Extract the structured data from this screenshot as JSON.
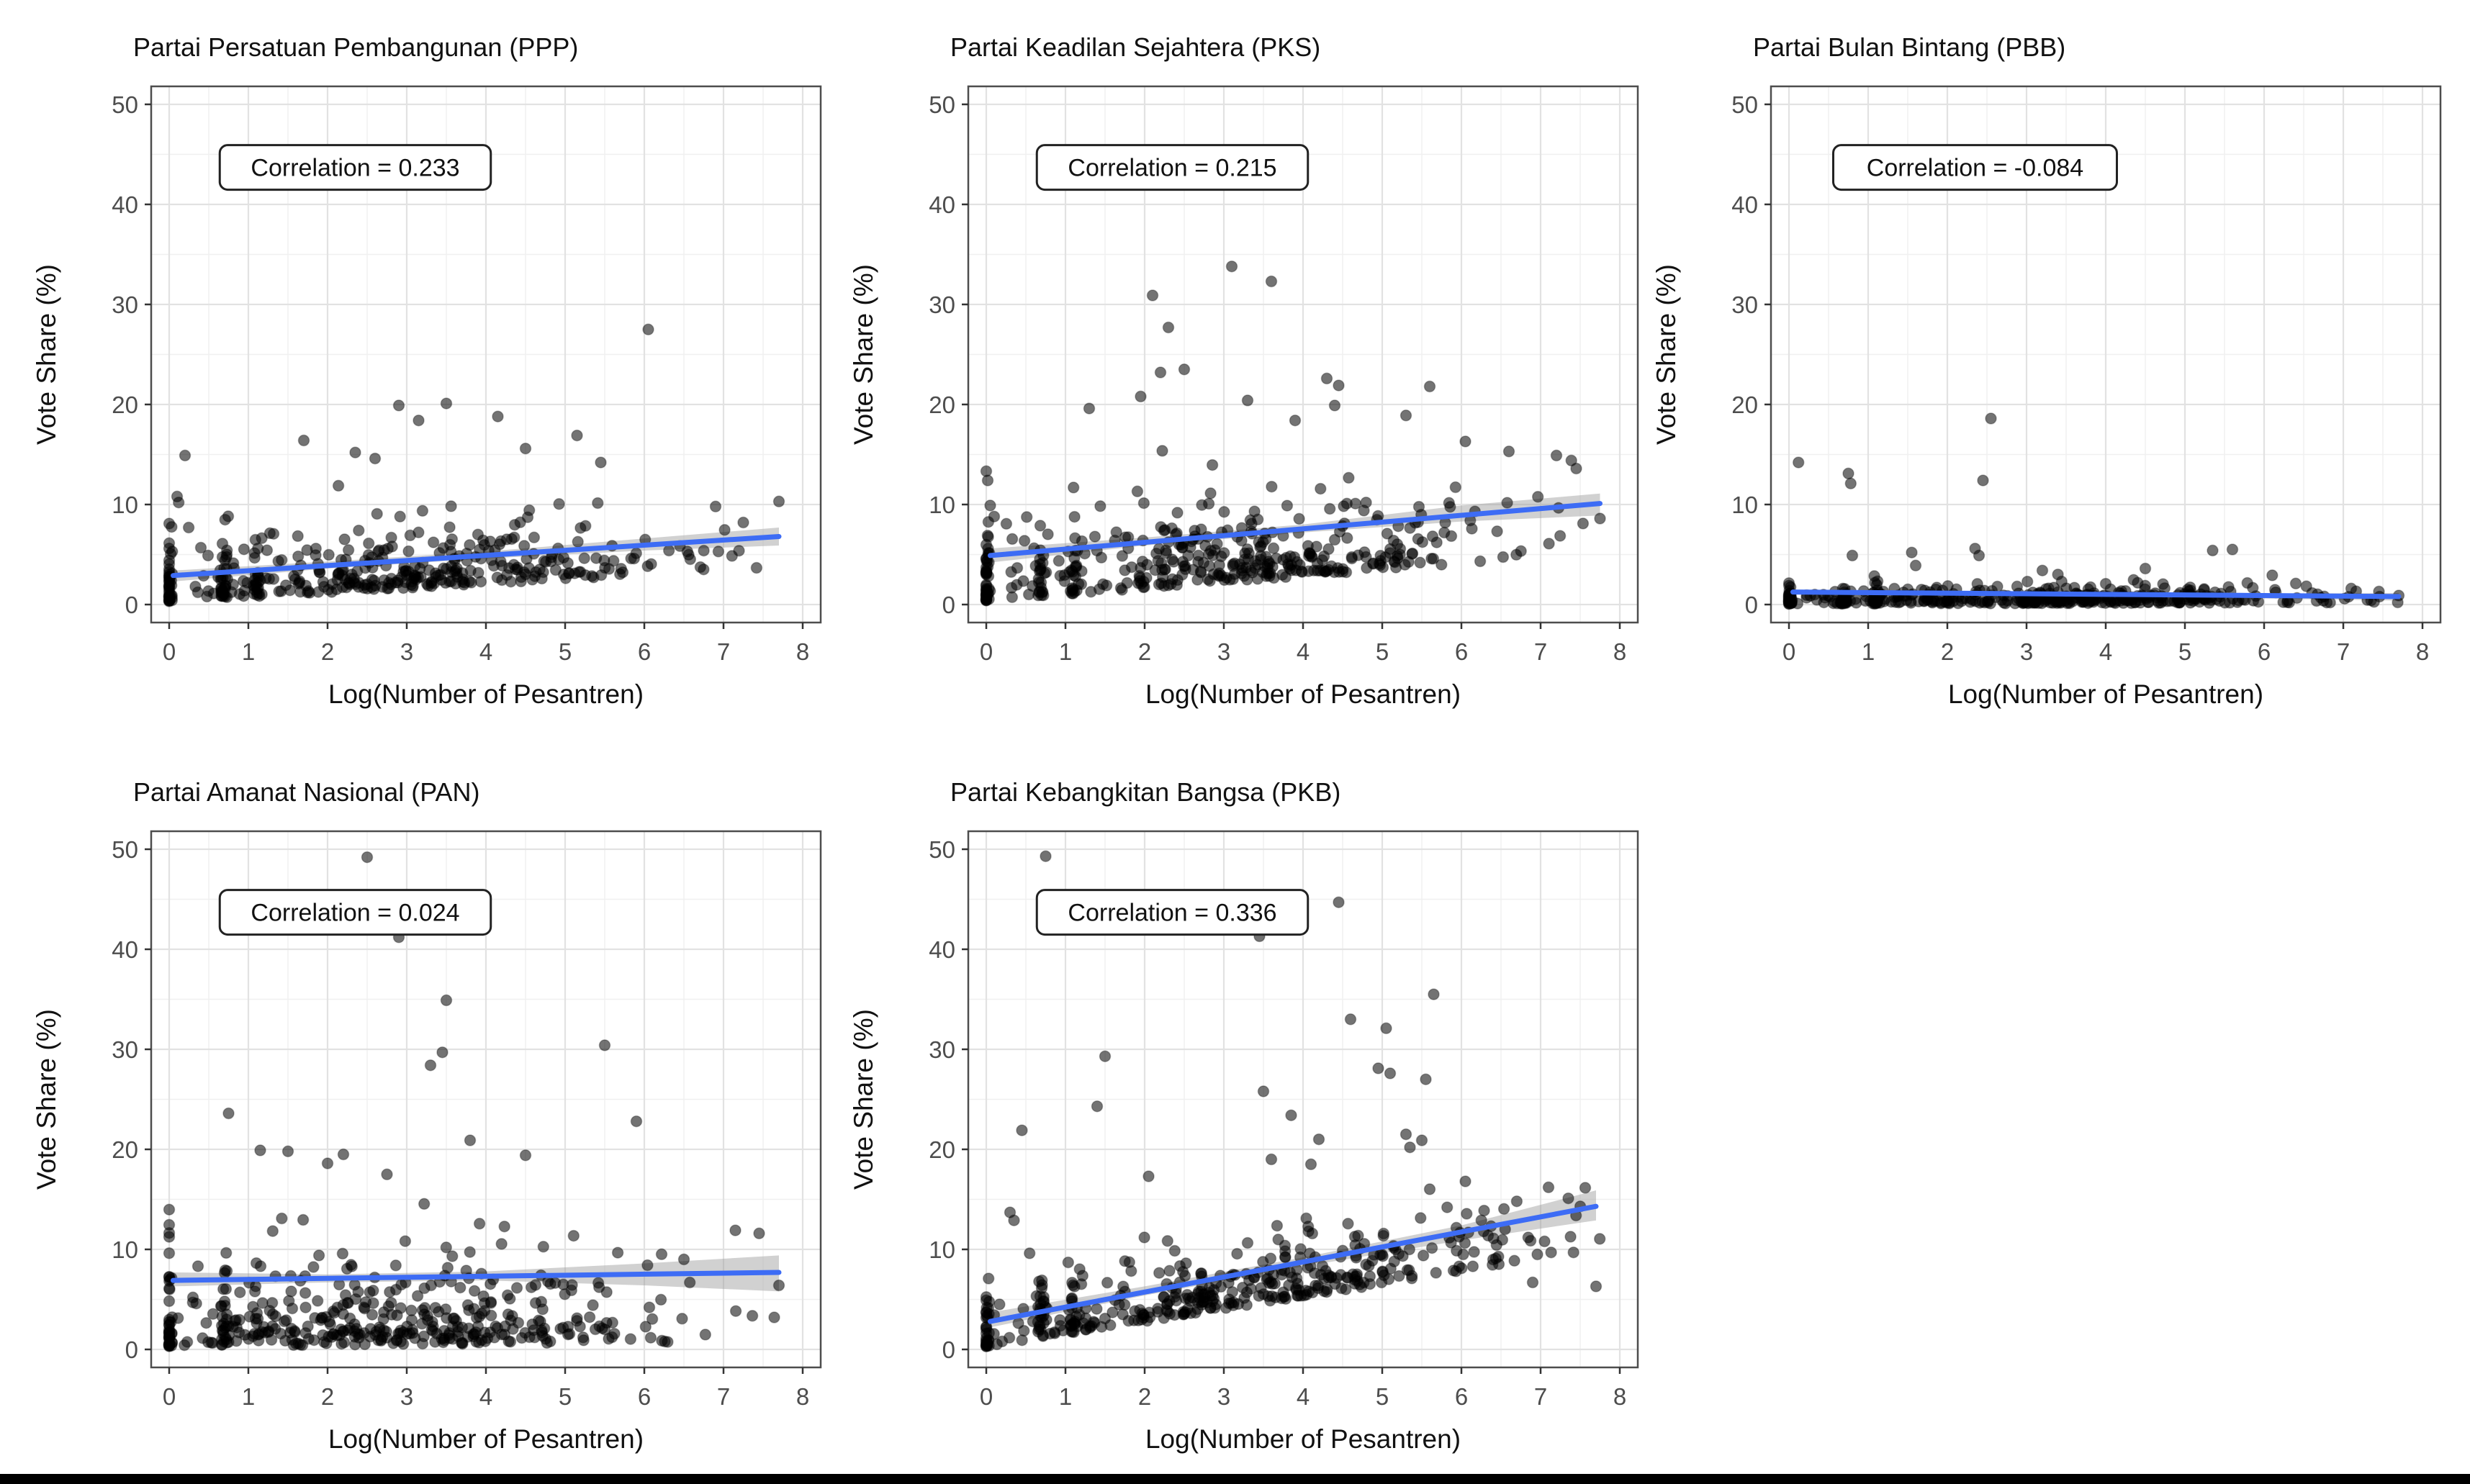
{
  "chart_data": {
    "type": "scatter",
    "layout": "5 small-multiple panels: 3 top row, 2 bottom row",
    "xlabel": "Log(Number of Pesantren)",
    "ylabel": "Vote Share (%)",
    "xlim": [
      0,
      8
    ],
    "ylim": [
      0,
      50
    ],
    "x_ticks": [
      0,
      1,
      2,
      3,
      4,
      5,
      6,
      7,
      8
    ],
    "y_ticks": [
      0,
      10,
      20,
      30,
      40,
      50
    ],
    "grid": "major and minor gridlines on, light gray, white panel, dark panel border",
    "legend": "none",
    "point_color": "#000000",
    "point_opacity": 0.55,
    "point_radius_px": 7.5,
    "trend_color": "#3D6CF5",
    "ci_color": "#9a9a9a",
    "ci_opacity": 0.45,
    "panels": [
      {
        "id": "ppp",
        "title": "Partai Persatuan Pembangunan (PPP)",
        "correlation": 0.233,
        "correlation_label": "Correlation = 0.233",
        "trend": {
          "x0": 0.05,
          "y0": 2.9,
          "x1": 7.7,
          "y1": 6.8
        },
        "ci": {
          "x": [
            0.05,
            2.0,
            4.0,
            6.0,
            7.7
          ],
          "lo": [
            2.3,
            3.6,
            4.6,
            5.4,
            5.9
          ],
          "hi": [
            3.4,
            4.3,
            5.3,
            6.6,
            7.7
          ]
        },
        "outliers": [
          [
            6.05,
            27.5
          ],
          [
            2.9,
            19.9
          ],
          [
            3.5,
            20.1
          ],
          [
            4.15,
            18.8
          ],
          [
            3.15,
            18.4
          ],
          [
            1.7,
            16.4
          ],
          [
            5.15,
            16.9
          ],
          [
            2.35,
            15.2
          ],
          [
            4.5,
            15.6
          ],
          [
            0.2,
            14.9
          ],
          [
            2.6,
            14.6
          ],
          [
            5.45,
            14.2
          ],
          [
            7.7,
            10.3
          ],
          [
            6.9,
            9.8
          ],
          [
            7.25,
            8.2
          ],
          [
            0.1,
            10.8
          ],
          [
            0.12,
            10.2
          ]
        ],
        "cloud": {
          "seed": 11,
          "n": 400,
          "x_mean": 3.2,
          "x_sd": 1.7,
          "x_max": 7.75,
          "base": 0.3,
          "slope": 0.45,
          "spread": 2.5,
          "pow": 1.3,
          "y_max": 13.5
        }
      },
      {
        "id": "pks",
        "title": "Partai Keadilan Sejahtera (PKS)",
        "correlation": 0.215,
        "correlation_label": "Correlation = 0.215",
        "trend": {
          "x0": 0.05,
          "y0": 4.9,
          "x1": 7.75,
          "y1": 10.1
        },
        "ci": {
          "x": [
            0.05,
            2.0,
            4.0,
            6.0,
            7.75
          ],
          "lo": [
            4.2,
            5.9,
            7.2,
            8.3,
            8.9
          ],
          "hi": [
            5.6,
            6.7,
            8.0,
            9.9,
            11.1
          ]
        },
        "outliers": [
          [
            3.1,
            33.8
          ],
          [
            3.6,
            32.3
          ],
          [
            2.1,
            30.9
          ],
          [
            2.3,
            27.7
          ],
          [
            2.5,
            23.5
          ],
          [
            2.2,
            23.2
          ],
          [
            4.3,
            22.6
          ],
          [
            4.45,
            21.9
          ],
          [
            5.6,
            21.8
          ],
          [
            1.95,
            20.8
          ],
          [
            3.3,
            20.4
          ],
          [
            4.4,
            19.9
          ],
          [
            1.3,
            19.6
          ],
          [
            5.3,
            18.9
          ],
          [
            3.9,
            18.4
          ],
          [
            6.05,
            16.3
          ],
          [
            6.6,
            15.3
          ],
          [
            7.2,
            14.9
          ],
          [
            7.45,
            13.6
          ],
          [
            7.75,
            8.6
          ],
          [
            0.05,
            9.9
          ],
          [
            0.1,
            8.8
          ]
        ],
        "cloud": {
          "seed": 22,
          "n": 420,
          "x_mean": 3.2,
          "x_sd": 1.7,
          "x_max": 7.75,
          "base": 0.4,
          "slope": 0.62,
          "spread": 3.1,
          "pow": 1.25,
          "y_max": 17.5
        }
      },
      {
        "id": "pbb",
        "title": "Partai Bulan Bintang (PBB)",
        "correlation": -0.084,
        "correlation_label": "Correlation = -0.084",
        "trend": {
          "x0": 0.05,
          "y0": 1.25,
          "x1": 7.7,
          "y1": 0.8
        },
        "ci": {
          "x": [
            0.05,
            2.0,
            4.0,
            6.0,
            7.7
          ],
          "lo": [
            1.0,
            0.95,
            0.85,
            0.6,
            0.4
          ],
          "hi": [
            1.5,
            1.3,
            1.15,
            1.1,
            1.15
          ]
        },
        "outliers": [
          [
            2.55,
            18.6
          ],
          [
            0.12,
            14.2
          ],
          [
            0.75,
            13.1
          ],
          [
            0.78,
            12.1
          ],
          [
            2.45,
            12.4
          ],
          [
            2.35,
            5.6
          ],
          [
            2.4,
            4.9
          ],
          [
            1.55,
            5.2
          ],
          [
            5.35,
            5.4
          ],
          [
            5.6,
            5.5
          ],
          [
            0.8,
            4.9
          ],
          [
            1.6,
            3.9
          ],
          [
            4.5,
            3.6
          ],
          [
            3.2,
            3.4
          ],
          [
            6.4,
            2.1
          ],
          [
            7.1,
            1.6
          ],
          [
            7.45,
            1.3
          ],
          [
            7.7,
            0.9
          ]
        ],
        "cloud": {
          "seed": 33,
          "n": 460,
          "x_mean": 3.3,
          "x_sd": 1.8,
          "x_max": 7.75,
          "base": 0.05,
          "slope": 0.02,
          "spread": 0.75,
          "pow": 1.2,
          "y_max": 3.2
        }
      },
      {
        "id": "pan",
        "title": "Partai Amanat Nasional (PAN)",
        "correlation": 0.024,
        "correlation_label": "Correlation = 0.024",
        "trend": {
          "x0": 0.05,
          "y0": 6.9,
          "x1": 7.7,
          "y1": 7.7
        },
        "ci": {
          "x": [
            0.05,
            2.0,
            4.0,
            6.0,
            7.7
          ],
          "lo": [
            6.3,
            6.7,
            6.9,
            6.4,
            5.8
          ],
          "hi": [
            7.7,
            7.5,
            7.8,
            8.6,
            9.4
          ]
        },
        "outliers": [
          [
            2.5,
            49.2
          ],
          [
            2.9,
            41.2
          ],
          [
            3.5,
            34.9
          ],
          [
            5.5,
            30.4
          ],
          [
            3.45,
            29.7
          ],
          [
            3.3,
            28.4
          ],
          [
            0.75,
            23.6
          ],
          [
            5.9,
            22.8
          ],
          [
            3.8,
            20.9
          ],
          [
            1.15,
            19.9
          ],
          [
            1.5,
            19.8
          ],
          [
            4.5,
            19.4
          ],
          [
            2.2,
            19.5
          ],
          [
            2.0,
            18.6
          ],
          [
            2.75,
            17.5
          ],
          [
            7.15,
            11.9
          ],
          [
            7.45,
            11.6
          ],
          [
            7.7,
            6.4
          ],
          [
            6.5,
            9.0
          ]
        ],
        "cloud": {
          "seed": 44,
          "n": 430,
          "x_mean": 3.1,
          "x_sd": 1.7,
          "x_max": 7.75,
          "base": 0.3,
          "slope": 0.07,
          "spread": 3.9,
          "pow": 1.2,
          "y_max": 15.5
        }
      },
      {
        "id": "pkb",
        "title": "Partai Kebangkitan Bangsa (PKB)",
        "correlation": 0.336,
        "correlation_label": "Correlation = 0.336",
        "trend": {
          "x0": 0.05,
          "y0": 2.8,
          "x1": 7.7,
          "y1": 14.3
        },
        "ci": {
          "x": [
            0.05,
            2.0,
            4.0,
            6.0,
            7.7
          ],
          "lo": [
            2.2,
            5.4,
            8.3,
            10.9,
            12.9
          ],
          "hi": [
            3.7,
            6.3,
            9.2,
            12.4,
            15.9
          ]
        },
        "outliers": [
          [
            0.75,
            49.3
          ],
          [
            4.45,
            44.7
          ],
          [
            3.45,
            41.3
          ],
          [
            5.65,
            35.5
          ],
          [
            4.6,
            33.0
          ],
          [
            5.05,
            32.1
          ],
          [
            1.5,
            29.3
          ],
          [
            4.95,
            28.1
          ],
          [
            5.1,
            27.6
          ],
          [
            5.55,
            27.0
          ],
          [
            3.5,
            25.8
          ],
          [
            1.4,
            24.3
          ],
          [
            3.85,
            23.4
          ],
          [
            0.45,
            21.9
          ],
          [
            4.2,
            21.0
          ],
          [
            5.3,
            21.5
          ],
          [
            5.5,
            20.9
          ],
          [
            5.35,
            20.2
          ],
          [
            3.6,
            19.0
          ],
          [
            4.1,
            18.5
          ],
          [
            2.05,
            17.3
          ],
          [
            6.05,
            16.8
          ],
          [
            7.1,
            16.2
          ],
          [
            7.35,
            15.1
          ],
          [
            0.3,
            13.7
          ],
          [
            0.35,
            12.9
          ],
          [
            7.7,
            6.3
          ],
          [
            6.9,
            6.7
          ]
        ],
        "cloud": {
          "seed": 55,
          "n": 420,
          "x_mean": 3.4,
          "x_sd": 1.7,
          "x_max": 7.75,
          "base": 0.3,
          "slope": 1.25,
          "spread": 2.6,
          "pow": 1.2,
          "y_max": 26.0
        }
      }
    ]
  },
  "page": {
    "background": "#ffffff",
    "bottom_bar_color": "#000000"
  }
}
